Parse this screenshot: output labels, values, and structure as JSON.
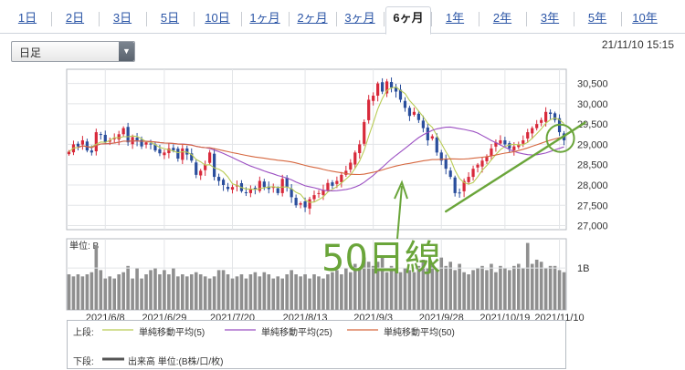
{
  "tabs": [
    {
      "label": "1日",
      "active": false
    },
    {
      "label": "2日",
      "active": false
    },
    {
      "label": "3日",
      "active": false
    },
    {
      "label": "5日",
      "active": false
    },
    {
      "label": "10日",
      "active": false
    },
    {
      "label": "1ヶ月",
      "active": false
    },
    {
      "label": "2ヶ月",
      "active": false
    },
    {
      "label": "3ヶ月",
      "active": false
    },
    {
      "label": "6ヶ月",
      "active": true
    },
    {
      "label": "1年",
      "active": false
    },
    {
      "label": "2年",
      "active": false
    },
    {
      "label": "3年",
      "active": false
    },
    {
      "label": "5年",
      "active": false
    },
    {
      "label": "10年",
      "active": false
    }
  ],
  "period_select": {
    "value": "日足"
  },
  "timestamp": "21/11/10 15:15",
  "annotation": {
    "text": "50日線",
    "color": "#6aa53a"
  },
  "legend": {
    "upper_label": "上段:",
    "lower_label": "下段:",
    "items": [
      {
        "name": "単純移動平均(5)",
        "color": "#b9cc55"
      },
      {
        "name": "単純移動平均(25)",
        "color": "#9b4fc2"
      },
      {
        "name": "単純移動平均(50)",
        "color": "#d6673f"
      }
    ],
    "volume_label": "出来高 単位:(B株/口/枚)"
  },
  "chart_data": {
    "type": "candlestick",
    "x_tick_labels": [
      "2021/6/8",
      "2021/6/29",
      "2021/7/20",
      "2021/8/13",
      "2021/9/3",
      "2021/9/28",
      "2021/10/19",
      "2021/11/10"
    ],
    "x_tick_index": [
      8,
      21,
      36,
      52,
      67,
      82,
      96,
      108
    ],
    "y_ticks": [
      27000,
      27500,
      28000,
      28500,
      29000,
      29500,
      30000,
      30500
    ],
    "y_tick_labels": [
      "27,000",
      "27,500",
      "28,000",
      "28,500",
      "29,000",
      "29,500",
      "30,000",
      "30,500"
    ],
    "ylim": [
      26900,
      30850
    ],
    "volume_unit_label": "単位: B",
    "volume_tick_label": "1B",
    "volume_ylim": [
      0,
      1.7
    ],
    "close": [
      28820,
      29000,
      28950,
      29100,
      28850,
      28800,
      29300,
      29250,
      29050,
      29100,
      29150,
      29250,
      29400,
      29050,
      29180,
      29100,
      28950,
      29050,
      29000,
      28850,
      28780,
      28800,
      28900,
      28850,
      28650,
      28900,
      28750,
      28600,
      28250,
      28350,
      28500,
      28800,
      28200,
      28100,
      28000,
      27900,
      27950,
      28000,
      27850,
      27800,
      27900,
      27900,
      28100,
      27950,
      27900,
      27950,
      27800,
      28150,
      27950,
      27700,
      27500,
      27550,
      27450,
      27650,
      27750,
      27800,
      27880,
      28050,
      27980,
      28100,
      28250,
      28350,
      28550,
      28800,
      29000,
      29550,
      30100,
      30200,
      30500,
      30300,
      30550,
      30400,
      30300,
      30100,
      29900,
      29700,
      29800,
      29600,
      29400,
      29100,
      29200,
      28800,
      28600,
      28400,
      28200,
      27800,
      27800,
      28100,
      28200,
      28400,
      28500,
      28600,
      28700,
      28900,
      29050,
      29100,
      29000,
      28900,
      28950,
      29000,
      29100,
      29300,
      29400,
      29500,
      29600,
      29800,
      29750,
      29600,
      29300,
      29100
    ],
    "ma_colors": [
      "#b9cc55",
      "#9b4fc2",
      "#d6673f"
    ],
    "volume": [
      0.85,
      0.8,
      0.85,
      0.8,
      0.85,
      0.9,
      1.55,
      0.95,
      0.75,
      0.8,
      0.75,
      0.85,
      0.9,
      1.05,
      0.75,
      1.0,
      0.75,
      0.85,
      0.95,
      1.0,
      0.85,
      0.95,
      0.85,
      1.0,
      0.8,
      0.85,
      0.8,
      0.85,
      0.9,
      0.85,
      0.8,
      0.75,
      0.8,
      0.95,
      0.95,
      0.85,
      0.75,
      0.8,
      0.85,
      0.75,
      0.85,
      0.9,
      0.8,
      0.9,
      0.85,
      0.75,
      0.8,
      0.75,
      0.85,
      0.95,
      0.85,
      0.8,
      0.85,
      0.75,
      0.85,
      0.8,
      0.75,
      0.85,
      0.9,
      0.95,
      0.85,
      1.0,
      0.9,
      1.1,
      1.0,
      1.25,
      1.15,
      1.05,
      1.15,
      1.3,
      0.9,
      1.05,
      0.95,
      0.9,
      1.0,
      0.95,
      0.9,
      1.05,
      1.2,
      1.0,
      1.1,
      0.95,
      1.25,
      1.05,
      1.15,
      0.95,
      1.1,
      0.9,
      0.85,
      0.95,
      1.0,
      1.05,
      0.95,
      1.1,
      0.9,
      1.05,
      1.0,
      0.95,
      1.05,
      1.1,
      1.0,
      1.6,
      1.1,
      1.2,
      1.15,
      1.0,
      1.05,
      1.05,
      0.95,
      0.9
    ],
    "trendline": {
      "points": [
        [
          83,
          27350
        ],
        [
          110,
          29400
        ]
      ],
      "color": "#6aa53a"
    },
    "circle": {
      "index": 107,
      "value": 29150,
      "color": "#6aa53a"
    }
  }
}
